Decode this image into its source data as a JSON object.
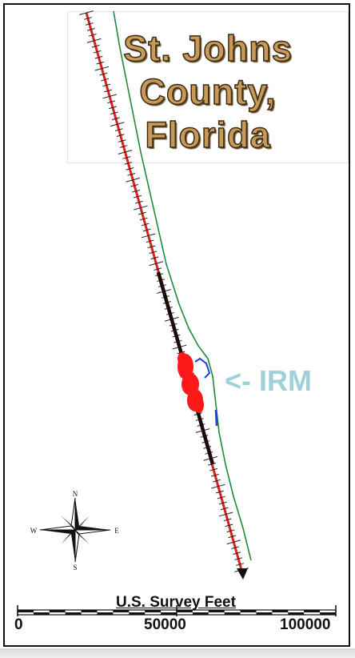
{
  "title": {
    "line1": "St. Johns",
    "line2": "County,",
    "line3": "Florida"
  },
  "annotation": {
    "irm_label": "<- IRM"
  },
  "scale_bar": {
    "units_label": "U.S. Survey Feet",
    "tick_labels": [
      "0",
      "50000",
      "100000"
    ]
  },
  "north_arrow": {
    "n": "N",
    "s": "S",
    "e": "E",
    "w": "W"
  },
  "colors": {
    "baseline": "#e0201c",
    "shoreline": "#1f8a3a",
    "irm_segment": "#1f3fe0",
    "irm_cluster": "#ff1a1a",
    "label_teal": "#9fd0d8",
    "title_fill": "#c89a5a"
  },
  "icons": [
    "north-arrow-icon",
    "arrowhead-icon"
  ]
}
